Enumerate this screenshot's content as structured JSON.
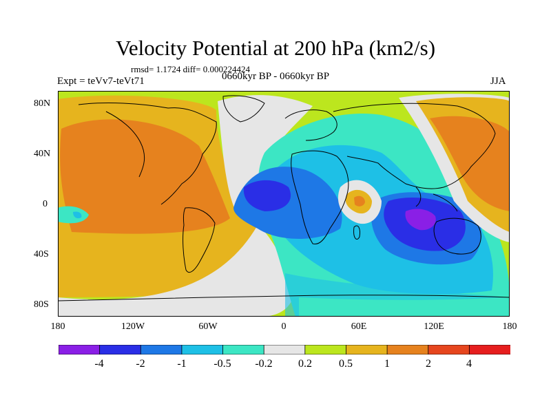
{
  "map": {
    "title": "Velocity Potential at 200 hPa (km2/s)",
    "stats": "rmsd= 1.1724 diff= 0.000224424",
    "experiment": "Expt = teVv7-teVt71",
    "period": "0660kyr BP - 0660kyr BP",
    "season": "JJA",
    "lat_ticks": [
      "80N",
      "40N",
      "0",
      "40S",
      "80S"
    ],
    "lon_ticks": [
      "180",
      "120W",
      "60W",
      "0",
      "60E",
      "120E",
      "180"
    ],
    "projection": "cylindrical equidistant",
    "field": "200 hPa velocity potential difference"
  },
  "colorbar": {
    "labels": [
      "-4",
      "-2",
      "-1",
      "-0.5",
      "-0.2",
      "0.2",
      "0.5",
      "1",
      "2",
      "4"
    ],
    "levels": [
      -4,
      -2,
      -1,
      -0.5,
      -0.2,
      0.2,
      0.5,
      1,
      2,
      4
    ],
    "colors": [
      "#8a1fe6",
      "#2a2ee6",
      "#1e78e6",
      "#1ec0e6",
      "#3ce6c4",
      "#e6e6e6",
      "#bce61e",
      "#e6b41e",
      "#e6821e",
      "#e6461e",
      "#e61e1e"
    ]
  }
}
